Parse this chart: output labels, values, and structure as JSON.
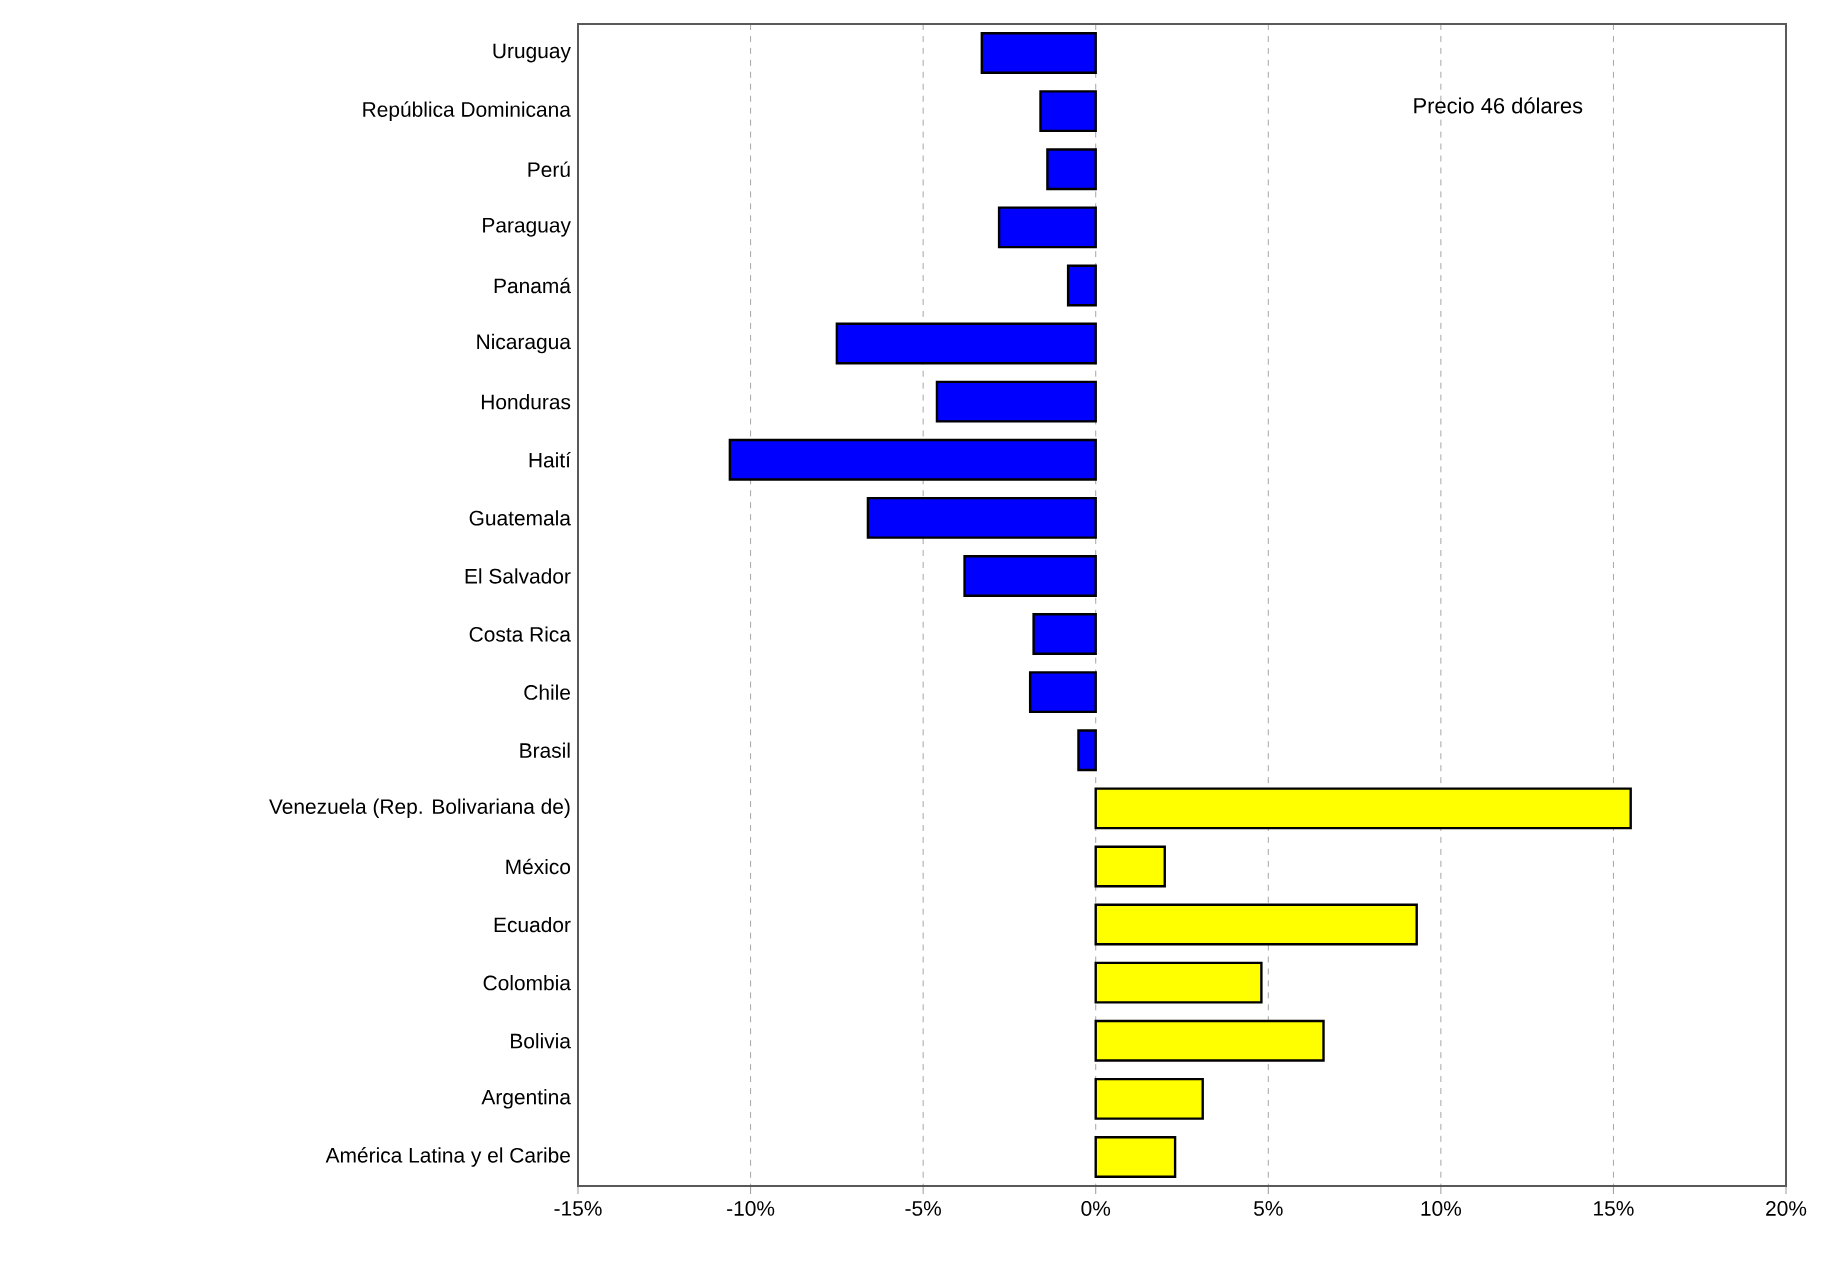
{
  "chart_data": {
    "type": "bar",
    "orientation": "horizontal",
    "categories": [
      "Uruguay",
      "República Dominicana",
      "Perú",
      "Paraguay",
      "Panamá",
      "Nicaragua",
      "Honduras",
      "Haití",
      "Guatemala",
      "El Salvador",
      "Costa Rica",
      "Chile",
      "Brasil",
      "Venezuela (Rep. Bolivariana de)",
      "México",
      "Ecuador",
      "Colombia",
      "Bolivia",
      "Argentina",
      "América Latina y el Caribe"
    ],
    "values": [
      -3.3,
      -1.6,
      -1.4,
      -2.8,
      -0.8,
      -7.5,
      -4.6,
      -10.6,
      -6.6,
      -3.8,
      -1.8,
      -1.9,
      -0.5,
      15.5,
      2.0,
      9.3,
      4.8,
      6.6,
      3.1,
      2.3
    ],
    "colors": [
      "#0000ff",
      "#0000ff",
      "#0000ff",
      "#0000ff",
      "#0000ff",
      "#0000ff",
      "#0000ff",
      "#0000ff",
      "#0000ff",
      "#0000ff",
      "#0000ff",
      "#0000ff",
      "#0000ff",
      "#ffff00",
      "#ffff00",
      "#ffff00",
      "#ffff00",
      "#ffff00",
      "#ffff00",
      "#ffff00"
    ],
    "xlim": [
      -15,
      20
    ],
    "xticks": [
      {
        "value": -15,
        "label": "-15%"
      },
      {
        "value": -10,
        "label": "-10%"
      },
      {
        "value": -5,
        "label": "-5%"
      },
      {
        "value": 0,
        "label": "0%"
      },
      {
        "value": 5,
        "label": "5%"
      },
      {
        "value": 10,
        "label": "10%"
      },
      {
        "value": 15,
        "label": "15%"
      },
      {
        "value": 20,
        "label": "20%"
      }
    ],
    "grid": "x",
    "annotations": [
      "Precio 46 dólares"
    ]
  }
}
